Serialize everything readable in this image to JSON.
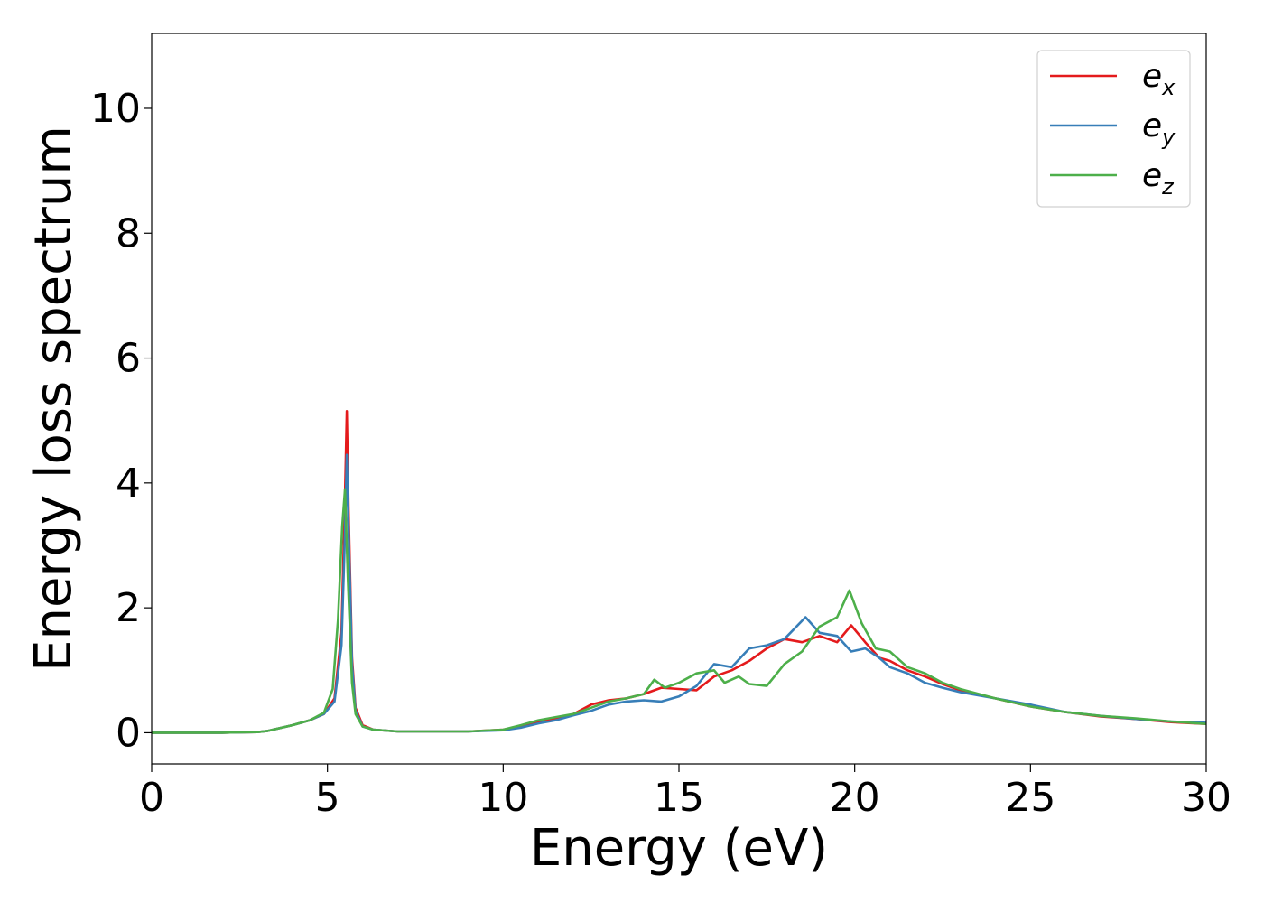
{
  "chart_data": {
    "type": "line",
    "title": "",
    "xlabel": "Energy (eV)",
    "ylabel": "Energy loss spectrum",
    "xlim": [
      0,
      30
    ],
    "ylim": [
      -0.5,
      11.2
    ],
    "xticks": [
      0,
      5,
      10,
      15,
      20,
      25,
      30
    ],
    "yticks": [
      0,
      2,
      4,
      6,
      8,
      10
    ],
    "grid": false,
    "legend_position": "top-right",
    "series": [
      {
        "name": "e",
        "subscript": "x",
        "color": "#e41a1c",
        "x": [
          0,
          1,
          2,
          3,
          3.3,
          4,
          4.5,
          4.9,
          5.2,
          5.4,
          5.5,
          5.55,
          5.6,
          5.7,
          5.8,
          6.0,
          6.3,
          7,
          8,
          9,
          10,
          10.5,
          11,
          11.5,
          12,
          12.5,
          13,
          13.5,
          14,
          14.5,
          15,
          15.5,
          16,
          16.5,
          17,
          17.5,
          18,
          18.5,
          19,
          19.5,
          19.9,
          20.3,
          20.7,
          21,
          21.5,
          22,
          22.5,
          23,
          24,
          25,
          26,
          27,
          28,
          29,
          30
        ],
        "y": [
          0,
          0,
          0,
          0.01,
          0.03,
          0.12,
          0.2,
          0.3,
          0.55,
          1.6,
          3.8,
          5.15,
          3.6,
          1.2,
          0.4,
          0.12,
          0.05,
          0.02,
          0.02,
          0.02,
          0.05,
          0.1,
          0.18,
          0.22,
          0.3,
          0.45,
          0.52,
          0.55,
          0.62,
          0.72,
          0.7,
          0.68,
          0.9,
          1.0,
          1.15,
          1.35,
          1.5,
          1.45,
          1.55,
          1.45,
          1.72,
          1.45,
          1.2,
          1.15,
          1.0,
          0.9,
          0.78,
          0.68,
          0.55,
          0.42,
          0.33,
          0.26,
          0.22,
          0.17,
          0.14
        ]
      },
      {
        "name": "e",
        "subscript": "y",
        "color": "#377eb8",
        "x": [
          0,
          1,
          2,
          3,
          3.3,
          4,
          4.5,
          4.9,
          5.2,
          5.4,
          5.5,
          5.55,
          5.6,
          5.7,
          5.8,
          6.0,
          6.3,
          7,
          8,
          9,
          10,
          10.5,
          11,
          11.5,
          12,
          12.5,
          13,
          13.5,
          14,
          14.5,
          15,
          15.5,
          16,
          16.5,
          17,
          17.5,
          18,
          18.6,
          19,
          19.5,
          19.9,
          20.3,
          20.7,
          21,
          21.5,
          22,
          22.5,
          23,
          24,
          25,
          26,
          27,
          28,
          29,
          30
        ],
        "y": [
          0,
          0,
          0,
          0.01,
          0.03,
          0.12,
          0.2,
          0.3,
          0.5,
          1.4,
          3.2,
          4.45,
          3.3,
          1.1,
          0.35,
          0.1,
          0.05,
          0.02,
          0.02,
          0.02,
          0.04,
          0.08,
          0.15,
          0.2,
          0.28,
          0.35,
          0.45,
          0.5,
          0.52,
          0.5,
          0.58,
          0.75,
          1.1,
          1.05,
          1.35,
          1.4,
          1.5,
          1.85,
          1.6,
          1.55,
          1.3,
          1.35,
          1.2,
          1.05,
          0.95,
          0.8,
          0.72,
          0.65,
          0.55,
          0.45,
          0.33,
          0.27,
          0.22,
          0.18,
          0.16
        ]
      },
      {
        "name": "e",
        "subscript": "z",
        "color": "#4daf4a",
        "x": [
          0,
          1,
          2,
          3,
          3.3,
          4,
          4.5,
          4.9,
          5.15,
          5.3,
          5.42,
          5.5,
          5.58,
          5.7,
          5.8,
          6.0,
          6.3,
          7,
          8,
          9,
          10,
          10.5,
          11,
          11.5,
          12,
          12.5,
          13,
          13.5,
          14,
          14.3,
          14.6,
          15,
          15.5,
          16,
          16.3,
          16.7,
          17,
          17.5,
          18,
          18.5,
          19,
          19.5,
          19.85,
          20.2,
          20.6,
          21,
          21.5,
          22,
          22.5,
          23,
          24,
          25,
          26,
          27,
          28,
          29,
          30
        ],
        "y": [
          0,
          0,
          0,
          0.01,
          0.03,
          0.12,
          0.2,
          0.32,
          0.7,
          1.8,
          3.3,
          3.9,
          2.5,
          0.8,
          0.3,
          0.1,
          0.05,
          0.02,
          0.02,
          0.02,
          0.05,
          0.12,
          0.2,
          0.25,
          0.3,
          0.4,
          0.5,
          0.55,
          0.62,
          0.85,
          0.72,
          0.8,
          0.95,
          1.0,
          0.8,
          0.9,
          0.78,
          0.75,
          1.1,
          1.3,
          1.7,
          1.85,
          2.28,
          1.75,
          1.35,
          1.3,
          1.05,
          0.95,
          0.8,
          0.7,
          0.55,
          0.42,
          0.33,
          0.27,
          0.23,
          0.18,
          0.14
        ]
      }
    ]
  }
}
